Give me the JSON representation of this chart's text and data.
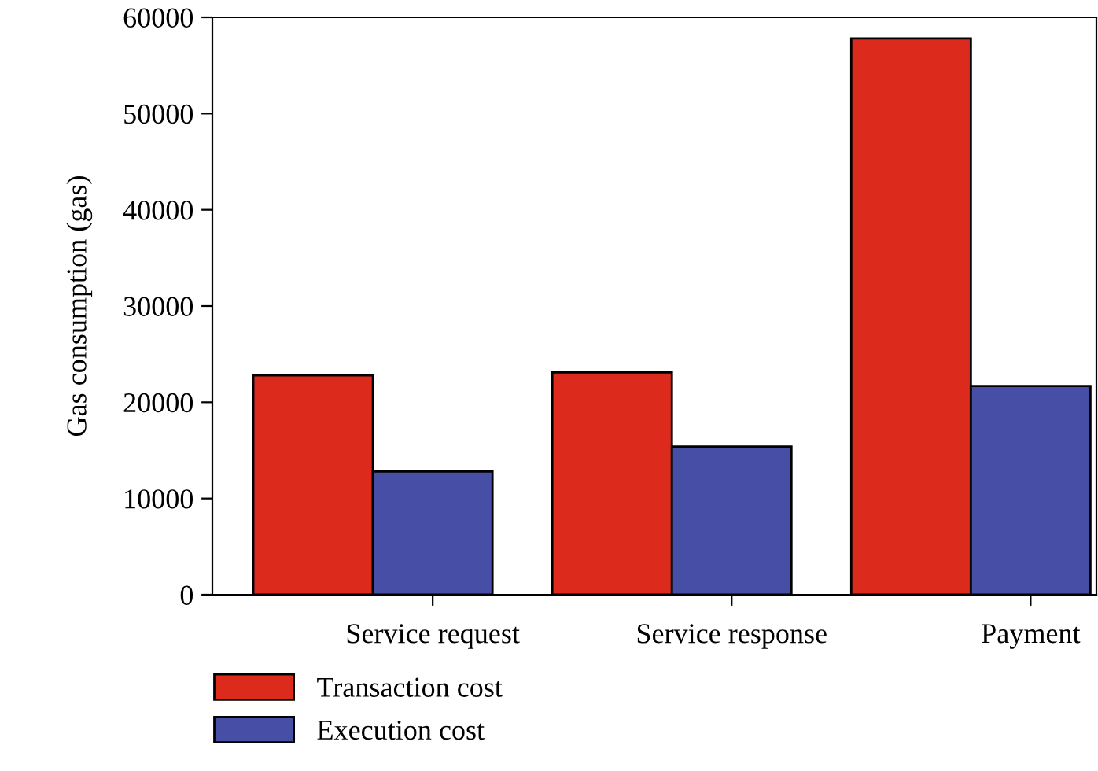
{
  "chart_data": {
    "type": "bar",
    "ylabel": "Gas consumption (gas)",
    "categories": [
      "Service request",
      "Service response",
      "Payment"
    ],
    "series": [
      {
        "name": "Transaction cost",
        "color": "#dc2b1c",
        "values": [
          22800,
          23100,
          57800
        ]
      },
      {
        "name": "Execution cost",
        "color": "#464ea6",
        "values": [
          12800,
          15400,
          21700
        ]
      }
    ],
    "ylim": [
      0,
      60000
    ],
    "yticks": [
      0,
      10000,
      20000,
      30000,
      40000,
      50000,
      60000
    ],
    "grid": false,
    "legend": "bottom left"
  }
}
